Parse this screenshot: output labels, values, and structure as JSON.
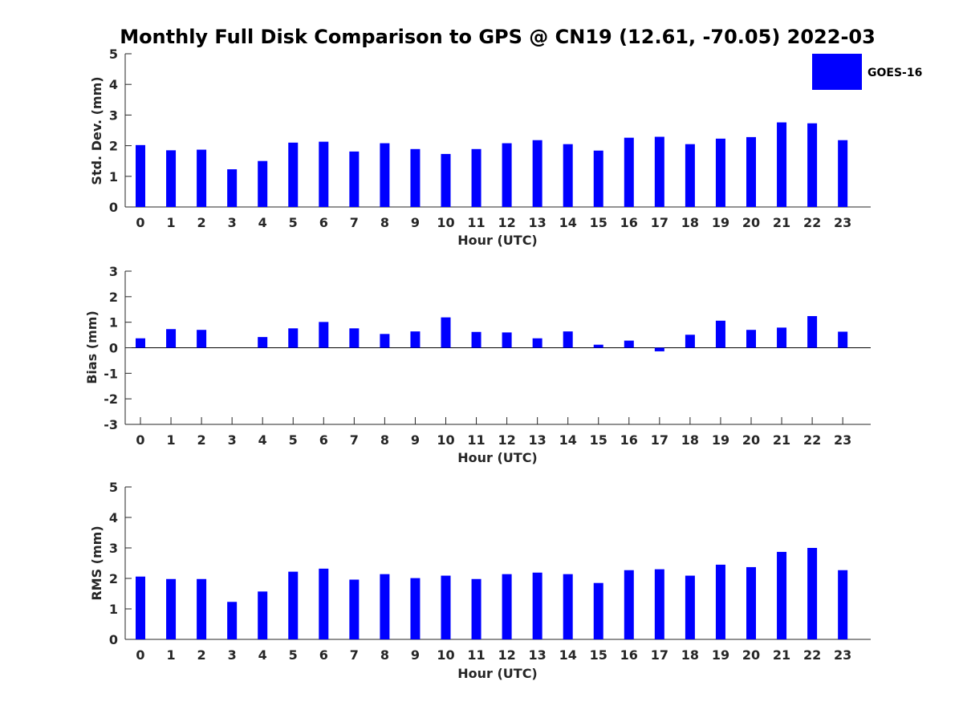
{
  "title": "Monthly Full Disk Comparison to GPS @ CN19 (12.61, -70.05) 2022-03",
  "legend": {
    "label": "GOES-16",
    "color": "#0000ff"
  },
  "colors": {
    "bar": "#0000ff",
    "axis": "#262626"
  },
  "chart_data": [
    {
      "type": "bar",
      "categories": [
        "0",
        "1",
        "2",
        "3",
        "4",
        "5",
        "6",
        "7",
        "8",
        "9",
        "10",
        "11",
        "12",
        "13",
        "14",
        "15",
        "16",
        "17",
        "18",
        "19",
        "20",
        "21",
        "22",
        "23"
      ],
      "series": [
        {
          "name": "GOES-16",
          "values": [
            2.02,
            1.85,
            1.87,
            1.23,
            1.5,
            2.1,
            2.13,
            1.81,
            2.08,
            1.89,
            1.73,
            1.89,
            2.08,
            2.18,
            2.05,
            1.84,
            2.26,
            2.29,
            2.05,
            2.23,
            2.28,
            2.76,
            2.73,
            2.18
          ]
        }
      ],
      "xlabel": "Hour (UTC)",
      "ylabel": "Std. Dev. (mm)",
      "ylim": [
        0,
        5
      ],
      "yticks": [
        "0",
        "1",
        "2",
        "3",
        "4",
        "5"
      ],
      "grid": false
    },
    {
      "type": "bar",
      "categories": [
        "0",
        "1",
        "2",
        "3",
        "4",
        "5",
        "6",
        "7",
        "8",
        "9",
        "10",
        "11",
        "12",
        "13",
        "14",
        "15",
        "16",
        "17",
        "18",
        "19",
        "20",
        "21",
        "22",
        "23"
      ],
      "series": [
        {
          "name": "GOES-16",
          "values": [
            0.37,
            0.73,
            0.7,
            0.0,
            0.42,
            0.76,
            1.01,
            0.76,
            0.54,
            0.64,
            1.19,
            0.62,
            0.6,
            0.37,
            0.64,
            0.12,
            0.28,
            -0.14,
            0.51,
            1.06,
            0.7,
            0.79,
            1.24,
            0.63
          ]
        }
      ],
      "xlabel": "Hour (UTC)",
      "ylabel": "Bias (mm)",
      "ylim": [
        -3,
        3
      ],
      "yticks": [
        "-3",
        "-2",
        "-1",
        "0",
        "1",
        "2",
        "3"
      ],
      "zero_line": true,
      "grid": false
    },
    {
      "type": "bar",
      "categories": [
        "0",
        "1",
        "2",
        "3",
        "4",
        "5",
        "6",
        "7",
        "8",
        "9",
        "10",
        "11",
        "12",
        "13",
        "14",
        "15",
        "16",
        "17",
        "18",
        "19",
        "20",
        "21",
        "22",
        "23"
      ],
      "series": [
        {
          "name": "GOES-16",
          "values": [
            2.06,
            1.98,
            1.98,
            1.23,
            1.57,
            2.22,
            2.32,
            1.96,
            2.14,
            2.01,
            2.09,
            1.98,
            2.14,
            2.19,
            2.14,
            1.85,
            2.27,
            2.3,
            2.09,
            2.45,
            2.37,
            2.87,
            3.0,
            2.27
          ]
        }
      ],
      "xlabel": "Hour (UTC)",
      "ylabel": "RMS (mm)",
      "ylim": [
        0,
        5
      ],
      "yticks": [
        "0",
        "1",
        "2",
        "3",
        "4",
        "5"
      ],
      "grid": false
    }
  ]
}
